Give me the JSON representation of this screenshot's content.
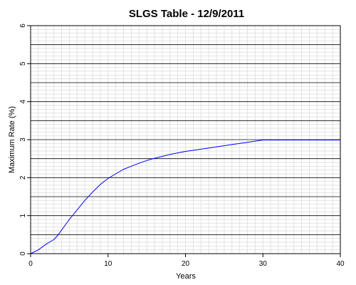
{
  "chart_data": {
    "type": "line",
    "title": "SLGS Table - 12/9/2011",
    "xlabel": "Years",
    "ylabel": "Maximum Rate (%)",
    "xlim": [
      0,
      40
    ],
    "ylim": [
      0,
      6
    ],
    "x_ticks": [
      "0",
      "10",
      "20",
      "30",
      "40"
    ],
    "y_ticks": [
      "0",
      "1",
      "2",
      "3",
      "4",
      "5",
      "6"
    ],
    "grid": true,
    "series_color": "#0000ff",
    "series": [
      {
        "x": [
          0,
          1,
          2,
          3,
          3.5,
          4,
          5,
          6,
          7,
          8,
          9,
          10,
          11,
          12,
          13,
          14,
          15,
          16,
          17,
          18,
          19,
          20,
          22,
          24,
          26,
          28,
          30,
          31,
          32,
          35,
          38,
          40
        ],
        "y": [
          0,
          0.1,
          0.25,
          0.37,
          0.48,
          0.62,
          0.9,
          1.15,
          1.4,
          1.62,
          1.82,
          1.98,
          2.1,
          2.22,
          2.3,
          2.38,
          2.45,
          2.51,
          2.56,
          2.61,
          2.65,
          2.69,
          2.75,
          2.81,
          2.87,
          2.93,
          2.99,
          2.99,
          2.99,
          2.99,
          2.99,
          2.99
        ]
      }
    ]
  }
}
